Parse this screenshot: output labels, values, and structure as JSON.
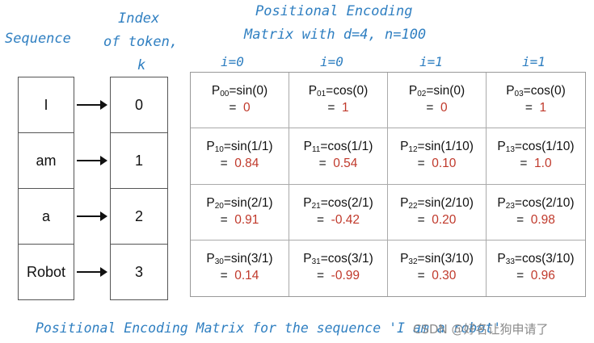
{
  "labels": {
    "sequence": "Sequence",
    "index_line1": "Index",
    "index_line2": "of token,",
    "index_line3": "k",
    "pe_line1": "Positional Encoding",
    "pe_line2": "Matrix with d=4, n=100",
    "caption": "Positional Encoding Matrix for the sequence 'I am a robot'",
    "watermark": "CSDN @好名让狗申请了"
  },
  "column_headers": [
    "i=0",
    "i=0",
    "i=1",
    "i=1"
  ],
  "tokens": [
    "I",
    "am",
    "a",
    "Robot"
  ],
  "indices": [
    "0",
    "1",
    "2",
    "3"
  ],
  "matrix": [
    [
      {
        "sub": "00",
        "expr": "=sin(0)",
        "value": "0"
      },
      {
        "sub": "01",
        "expr": "=cos(0)",
        "value": "1"
      },
      {
        "sub": "02",
        "expr": "=sin(0)",
        "value": "0"
      },
      {
        "sub": "03",
        "expr": "=cos(0)",
        "value": "1"
      }
    ],
    [
      {
        "sub": "10",
        "expr": "=sin(1/1)",
        "value": "0.84"
      },
      {
        "sub": "11",
        "expr": "=cos(1/1)",
        "value": "0.54"
      },
      {
        "sub": "12",
        "expr": "=sin(1/10)",
        "value": "0.10"
      },
      {
        "sub": "13",
        "expr": "=cos(1/10)",
        "value": "1.0"
      }
    ],
    [
      {
        "sub": "20",
        "expr": "=sin(2/1)",
        "value": "0.91"
      },
      {
        "sub": "21",
        "expr": "=cos(2/1)",
        "value": "-0.42"
      },
      {
        "sub": "22",
        "expr": "=sin(2/10)",
        "value": "0.20"
      },
      {
        "sub": "23",
        "expr": "=cos(2/10)",
        "value": "0.98"
      }
    ],
    [
      {
        "sub": "30",
        "expr": "=sin(3/1)",
        "value": "0.14"
      },
      {
        "sub": "31",
        "expr": "=cos(3/1)",
        "value": "-0.99"
      },
      {
        "sub": "32",
        "expr": "=sin(3/10)",
        "value": "0.30"
      },
      {
        "sub": "33",
        "expr": "=cos(3/10)",
        "value": "0.96"
      }
    ]
  ],
  "colors": {
    "label_blue": "#2f7fc1",
    "value_red": "#c0392b"
  }
}
